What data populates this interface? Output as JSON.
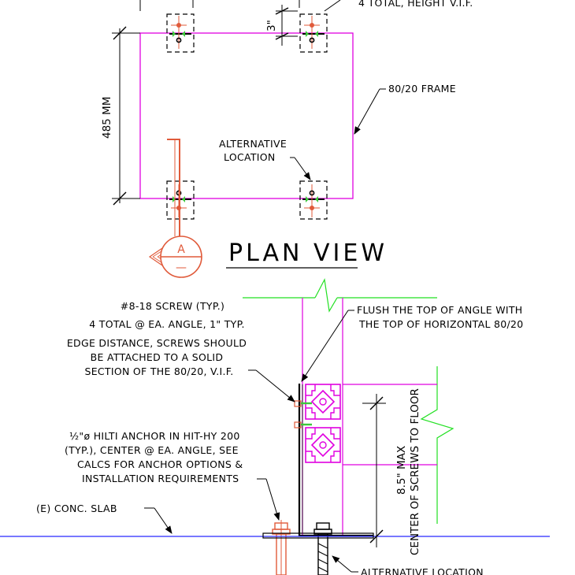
{
  "colors": {
    "frame": "#e000e0",
    "wall": "#22e022",
    "slab": "#2828ff",
    "anchor": "#e05a3a",
    "ink": "#000000",
    "screw_green": "#3cc83c"
  },
  "plan": {
    "top_note": "4 TOTAL, HEIGHT V.I.F.",
    "dim_3in": "3\"",
    "dim_485": "485 MM",
    "frame_label": "80/20 FRAME",
    "alt_location": [
      "ALTERNATIVE",
      "LOCATION"
    ],
    "section_letter": "A",
    "section_sheet": "—",
    "title": "PLAN VIEW"
  },
  "section": {
    "screw_note": [
      "#8-18 SCREW (TYP.)",
      "4 TOTAL @ EA. ANGLE, 1\" TYP.",
      "EDGE DISTANCE, SCREWS SHOULD",
      "BE ATTACHED TO A SOLID",
      "SECTION OF THE 80/20, V.I.F."
    ],
    "flush_note": [
      "FLUSH THE TOP OF ANGLE WITH",
      "THE TOP OF HORIZONTAL 80/20"
    ],
    "anchor_note_frac": "½\"ø",
    "anchor_note": [
      " HILTI ANCHOR IN HIT-HY 200",
      "(TYP.), CENTER @ EA. ANGLE, SEE",
      "CALCS FOR ANCHOR OPTIONS &",
      "INSTALLATION REQUIREMENTS"
    ],
    "slab_label": "(E)  CONC. SLAB",
    "dim_max": "8.5\" MAX",
    "dim_center": "CENTER OF SCREWS TO FLOOR",
    "alt_location_bottom": "ALTERNATIVE LOCATION"
  }
}
